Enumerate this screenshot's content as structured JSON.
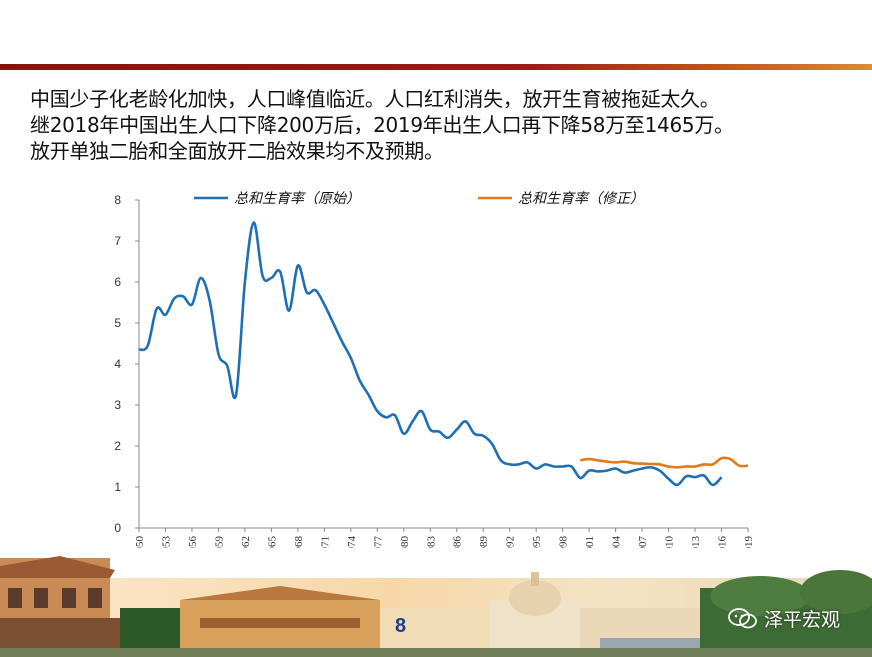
{
  "headline": {
    "line1": "中国少子化老龄化加快，人口峰值临近。人口红利消失，放开生育被拖延太久。",
    "line2": "继2018年中国出生人口下降200万后，2019年出生人口再下降58万至1465万。",
    "line3": "放开单独二胎和全面放开二胎效果均不及预期。"
  },
  "page_number": "8",
  "watermark": "泽平宏观",
  "colors": {
    "series_raw": "#1f6fb5",
    "series_revised": "#e07a1a",
    "rule_dark": "#8a1010",
    "rule_light": "#e08a30",
    "page_number": "#1f3d8c"
  },
  "chart_data": {
    "type": "line",
    "title": "",
    "xlabel": "",
    "ylabel": "",
    "ylim": [
      0,
      8
    ],
    "yticks": [
      "0",
      "1",
      "2",
      "3",
      "4",
      "5",
      "6",
      "7",
      "8"
    ],
    "xticks": [
      "1950",
      "1953",
      "1956",
      "1959",
      "1962",
      "1965",
      "1968",
      "1971",
      "1974",
      "1977",
      "1980",
      "1983",
      "1986",
      "1989",
      "1992",
      "1995",
      "1998",
      "2001",
      "2004",
      "2007",
      "2010",
      "2013",
      "2016",
      "2019"
    ],
    "grid": false,
    "legend_position": "top",
    "series": [
      {
        "name": "总和生育率（原始）",
        "color": "#1f6fb5",
        "points": [
          [
            1950,
            4.35
          ],
          [
            1951,
            4.45
          ],
          [
            1952,
            5.35
          ],
          [
            1953,
            5.2
          ],
          [
            1954,
            5.6
          ],
          [
            1955,
            5.65
          ],
          [
            1956,
            5.45
          ],
          [
            1957,
            6.1
          ],
          [
            1958,
            5.55
          ],
          [
            1959,
            4.25
          ],
          [
            1960,
            3.95
          ],
          [
            1961,
            3.25
          ],
          [
            1962,
            6.0
          ],
          [
            1963,
            7.45
          ],
          [
            1964,
            6.15
          ],
          [
            1965,
            6.1
          ],
          [
            1966,
            6.25
          ],
          [
            1967,
            5.3
          ],
          [
            1968,
            6.4
          ],
          [
            1969,
            5.75
          ],
          [
            1970,
            5.8
          ],
          [
            1971,
            5.45
          ],
          [
            1972,
            5.0
          ],
          [
            1973,
            4.55
          ],
          [
            1974,
            4.15
          ],
          [
            1975,
            3.6
          ],
          [
            1976,
            3.25
          ],
          [
            1977,
            2.85
          ],
          [
            1978,
            2.7
          ],
          [
            1979,
            2.75
          ],
          [
            1980,
            2.3
          ],
          [
            1981,
            2.6
          ],
          [
            1982,
            2.85
          ],
          [
            1983,
            2.4
          ],
          [
            1984,
            2.35
          ],
          [
            1985,
            2.2
          ],
          [
            1986,
            2.4
          ],
          [
            1987,
            2.6
          ],
          [
            1988,
            2.3
          ],
          [
            1989,
            2.25
          ],
          [
            1990,
            2.05
          ],
          [
            1991,
            1.65
          ],
          [
            1992,
            1.55
          ],
          [
            1993,
            1.55
          ],
          [
            1994,
            1.6
          ],
          [
            1995,
            1.45
          ],
          [
            1996,
            1.55
          ],
          [
            1997,
            1.5
          ],
          [
            1998,
            1.5
          ],
          [
            1999,
            1.5
          ],
          [
            2000,
            1.22
          ],
          [
            2001,
            1.4
          ],
          [
            2002,
            1.38
          ],
          [
            2003,
            1.4
          ],
          [
            2004,
            1.45
          ],
          [
            2005,
            1.35
          ],
          [
            2006,
            1.4
          ],
          [
            2007,
            1.45
          ],
          [
            2008,
            1.48
          ],
          [
            2009,
            1.4
          ],
          [
            2010,
            1.2
          ],
          [
            2011,
            1.05
          ],
          [
            2012,
            1.26
          ],
          [
            2013,
            1.24
          ],
          [
            2014,
            1.28
          ],
          [
            2015,
            1.05
          ],
          [
            2016,
            1.24
          ]
        ]
      },
      {
        "name": "总和生育率（修正）",
        "color": "#e07a1a",
        "points": [
          [
            2000,
            1.65
          ],
          [
            2001,
            1.68
          ],
          [
            2002,
            1.65
          ],
          [
            2003,
            1.62
          ],
          [
            2004,
            1.6
          ],
          [
            2005,
            1.62
          ],
          [
            2006,
            1.58
          ],
          [
            2007,
            1.57
          ],
          [
            2008,
            1.56
          ],
          [
            2009,
            1.55
          ],
          [
            2010,
            1.5
          ],
          [
            2011,
            1.48
          ],
          [
            2012,
            1.5
          ],
          [
            2013,
            1.5
          ],
          [
            2014,
            1.55
          ],
          [
            2015,
            1.55
          ],
          [
            2016,
            1.7
          ],
          [
            2017,
            1.68
          ],
          [
            2018,
            1.52
          ],
          [
            2019,
            1.52
          ]
        ]
      }
    ]
  }
}
